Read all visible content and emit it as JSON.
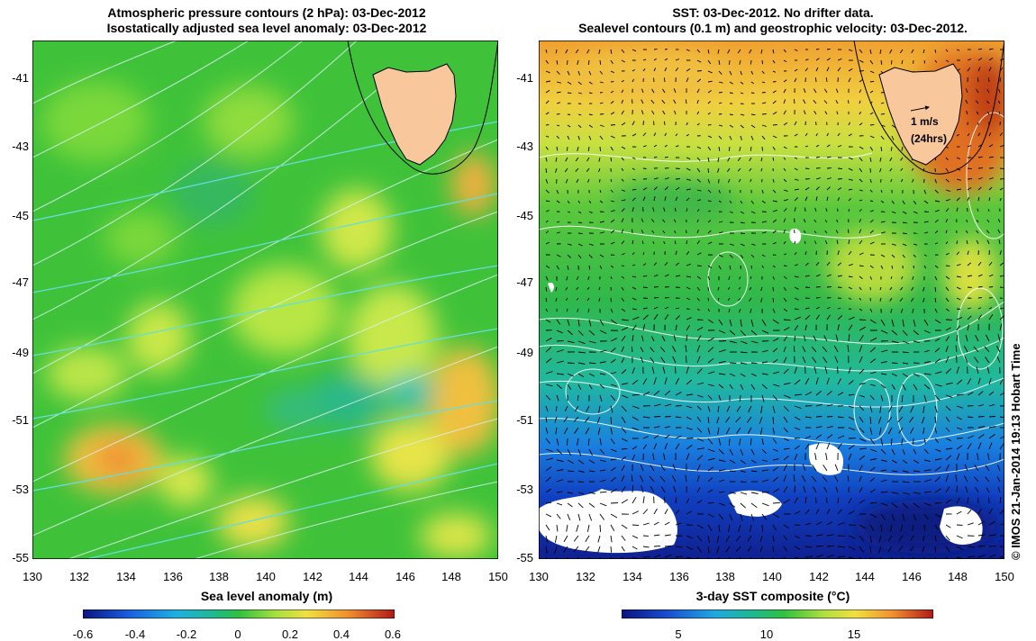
{
  "left_map": {
    "title_line1": "Atmospheric pressure contours (2 hPa): 03-Dec-2012",
    "title_line2": "Isostatically adjusted sea level anomaly: 03-Dec-2012",
    "y_ticks": [
      "-41",
      "-43",
      "-45",
      "-47",
      "-49",
      "-51",
      "-53",
      "-55"
    ],
    "x_ticks": [
      "130",
      "132",
      "134",
      "136",
      "138",
      "140",
      "142",
      "144",
      "146",
      "148",
      "150"
    ],
    "colorbar_label": "Sea level anomaly (m)",
    "colorbar_ticks": [
      "-0.6",
      "-0.4",
      "-0.2",
      "0",
      "0.2",
      "0.4",
      "0.6"
    ],
    "colors": {
      "land": "#f8c89c",
      "contour": "#66dddd",
      "pressure": "#d8f0f0"
    }
  },
  "right_map": {
    "title_line1": "SST: 03-Dec-2012. No drifter data.",
    "title_line2": "Sealevel contours (0.1 m) and geostrophic velocity: 03-Dec-2012.",
    "y_ticks": [
      "-41",
      "-43",
      "-45",
      "-47",
      "-49",
      "-51",
      "-53",
      "-55"
    ],
    "x_ticks": [
      "130",
      "132",
      "134",
      "136",
      "138",
      "140",
      "142",
      "144",
      "146",
      "148",
      "150"
    ],
    "colorbar_label": "3-day SST composite (°C)",
    "colorbar_ticks": [
      "5",
      "10",
      "15"
    ],
    "velocity_scale_label": "1 m/s",
    "velocity_scale_sub": "(24hrs)",
    "colors": {
      "land": "#f8c89c",
      "contour": "#ffffff",
      "arrow": "#000000"
    }
  },
  "credit": "© IMOS 21-Jan-2014 19:13 Hobart Time"
}
